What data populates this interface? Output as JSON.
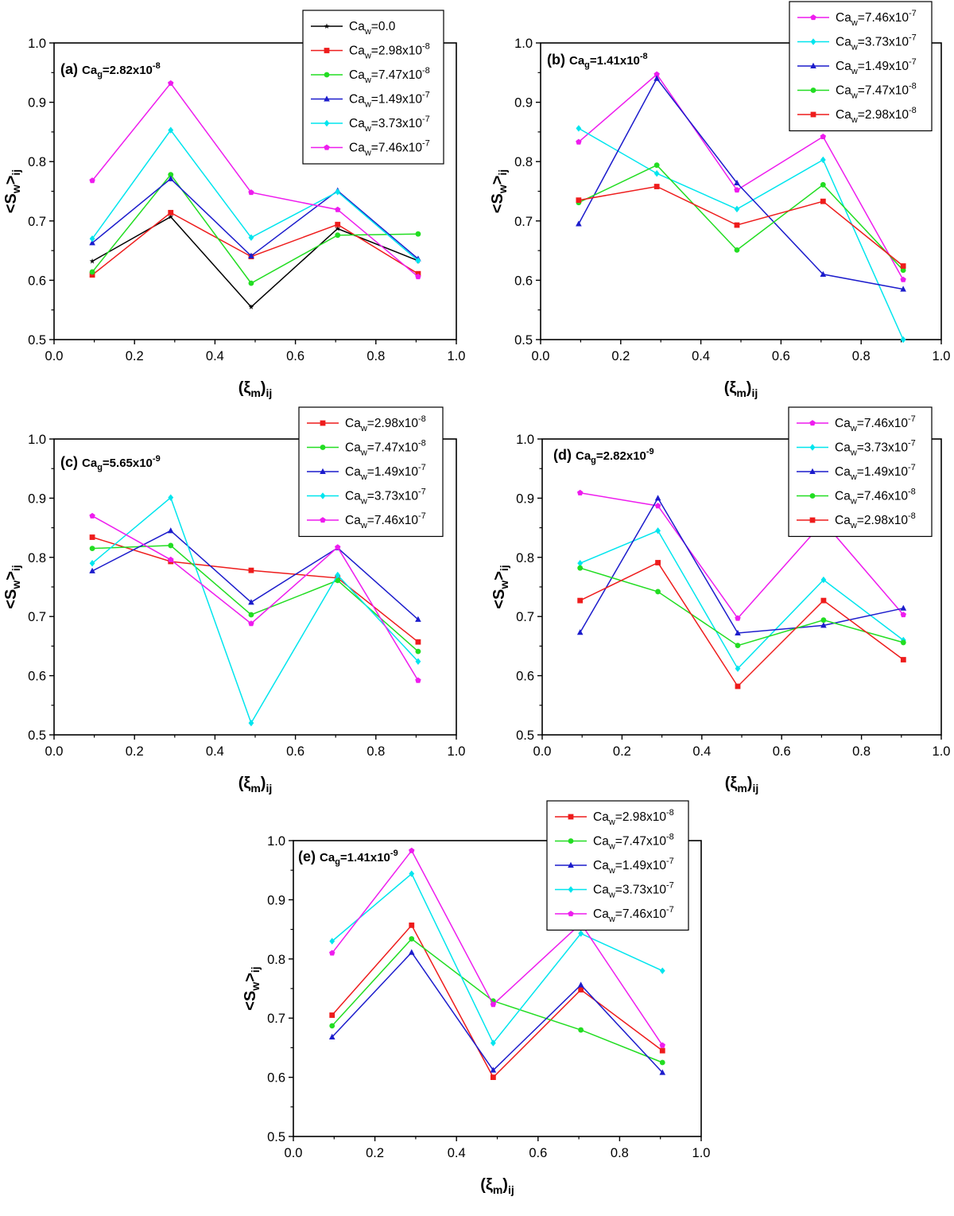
{
  "figure": {
    "x_label": "(ξm)ij",
    "y_label": "<Sw>ij",
    "colors": {
      "Ca_w=0.0": "#000000",
      "Ca_w=2.98x10^-8": "#ee1c1c",
      "Ca_w=7.47x10^-8": "#22dd22",
      "Ca_w=7.46x10^-8": "#22dd22",
      "Ca_w=1.49x10^-7": "#1c1ccc",
      "Ca_w=3.73x10^-7": "#00e5ee",
      "Ca_w=7.46x10^-7": "#ee1cee"
    },
    "markers": {
      "Ca_w=0.0": "star",
      "Ca_w=2.98x10^-8": "square",
      "Ca_w=7.47x10^-8": "circle",
      "Ca_w=7.46x10^-8": "circle",
      "Ca_w=1.49x10^-7": "triangle",
      "Ca_w=3.73x10^-7": "diamond",
      "Ca_w=7.46x10^-7": "pentagon"
    }
  },
  "chart_data": [
    {
      "type": "line",
      "panel_label": "(a)",
      "title_main": "Ca",
      "title_sub": "g",
      "title_eq": "=2.82x10",
      "title_exp": "-8",
      "xlabel": "(ξm)ij",
      "ylabel": "<Sw>ij",
      "xlim": [
        0.0,
        1.0
      ],
      "ylim": [
        0.5,
        1.0
      ],
      "xticks": [
        "0.0",
        "0.2",
        "0.4",
        "0.6",
        "0.8",
        "1.0"
      ],
      "yticks": [
        "0.5",
        "0.6",
        "0.7",
        "0.8",
        "0.9",
        "1.0"
      ],
      "x": [
        0.095,
        0.29,
        0.49,
        0.705,
        0.905
      ],
      "legend_location": "top-right",
      "series": [
        {
          "key": "Ca_w=0.0",
          "name": "Ca",
          "sub": "w",
          "eq": "=0.0",
          "exp": "",
          "values": [
            0.632,
            0.707,
            0.555,
            0.687,
            0.633
          ]
        },
        {
          "key": "Ca_w=2.98x10^-8",
          "name": "Ca",
          "sub": "w",
          "eq": "=2.98x10",
          "exp": "-8",
          "values": [
            0.609,
            0.714,
            0.64,
            0.694,
            0.611
          ]
        },
        {
          "key": "Ca_w=7.47x10^-8",
          "name": "Ca",
          "sub": "w",
          "eq": "=7.47x10",
          "exp": "-8",
          "values": [
            0.614,
            0.778,
            0.595,
            0.676,
            0.678
          ]
        },
        {
          "key": "Ca_w=1.49x10^-7",
          "name": "Ca",
          "sub": "w",
          "eq": "=1.49x10",
          "exp": "-7",
          "values": [
            0.663,
            0.771,
            0.641,
            0.751,
            0.636
          ]
        },
        {
          "key": "Ca_w=3.73x10^-7",
          "name": "Ca",
          "sub": "w",
          "eq": "=3.73x10",
          "exp": "-7",
          "values": [
            0.67,
            0.853,
            0.672,
            0.749,
            0.633
          ]
        },
        {
          "key": "Ca_w=7.46x10^-7",
          "name": "Ca",
          "sub": "w",
          "eq": "=7.46x10",
          "exp": "-7",
          "values": [
            0.768,
            0.932,
            0.748,
            0.719,
            0.606
          ]
        }
      ]
    },
    {
      "type": "line",
      "panel_label": "(b)",
      "title_main": "Ca",
      "title_sub": "g",
      "title_eq": "=1.41x10",
      "title_exp": "-8",
      "xlabel": "(ξm)ij",
      "ylabel": "<Sw>ij",
      "xlim": [
        0.0,
        1.0
      ],
      "ylim": [
        0.5,
        1.0
      ],
      "xticks": [
        "0.0",
        "0.2",
        "0.4",
        "0.6",
        "0.8",
        "1.0"
      ],
      "yticks": [
        "0.5",
        "0.6",
        "0.7",
        "0.8",
        "0.9",
        "1.0"
      ],
      "x": [
        0.095,
        0.29,
        0.49,
        0.705,
        0.905
      ],
      "legend_location": "top-right",
      "series": [
        {
          "key": "Ca_w=7.46x10^-7",
          "name": "Ca",
          "sub": "w",
          "eq": "=7.46x10",
          "exp": "-7",
          "values": [
            0.833,
            0.947,
            0.752,
            0.842,
            0.601
          ]
        },
        {
          "key": "Ca_w=3.73x10^-7",
          "name": "Ca",
          "sub": "w",
          "eq": "=3.73x10",
          "exp": "-7",
          "values": [
            0.856,
            0.78,
            0.72,
            0.803,
            0.5
          ]
        },
        {
          "key": "Ca_w=1.49x10^-7",
          "name": "Ca",
          "sub": "w",
          "eq": "=1.49x10",
          "exp": "-7",
          "values": [
            0.695,
            0.94,
            0.764,
            0.61,
            0.585
          ]
        },
        {
          "key": "Ca_w=7.47x10^-8",
          "name": "Ca",
          "sub": "w",
          "eq": "=7.47x10",
          "exp": "-8",
          "values": [
            0.731,
            0.794,
            0.651,
            0.761,
            0.617
          ]
        },
        {
          "key": "Ca_w=2.98x10^-8",
          "name": "Ca",
          "sub": "w",
          "eq": "=2.98x10",
          "exp": "-8",
          "values": [
            0.735,
            0.758,
            0.693,
            0.733,
            0.624
          ]
        }
      ]
    },
    {
      "type": "line",
      "panel_label": "(c)",
      "title_main": "Ca",
      "title_sub": "g",
      "title_eq": "=5.65x10",
      "title_exp": "-9",
      "xlabel": "(ξm)ij",
      "ylabel": "<Sw>ij",
      "xlim": [
        0.0,
        1.0
      ],
      "ylim": [
        0.5,
        1.0
      ],
      "xticks": [
        "0.0",
        "0.2",
        "0.4",
        "0.6",
        "0.8",
        "1.0"
      ],
      "yticks": [
        "0.5",
        "0.6",
        "0.7",
        "0.8",
        "0.9",
        "1.0"
      ],
      "x": [
        0.095,
        0.29,
        0.49,
        0.705,
        0.905
      ],
      "legend_location": "top-right",
      "series": [
        {
          "key": "Ca_w=2.98x10^-8",
          "name": "Ca",
          "sub": "w",
          "eq": "=2.98x10",
          "exp": "-8",
          "values": [
            0.834,
            0.793,
            0.778,
            0.765,
            0.657
          ]
        },
        {
          "key": "Ca_w=7.47x10^-8",
          "name": "Ca",
          "sub": "w",
          "eq": "=7.47x10",
          "exp": "-8",
          "values": [
            0.815,
            0.82,
            0.703,
            0.761,
            0.641
          ]
        },
        {
          "key": "Ca_w=1.49x10^-7",
          "name": "Ca",
          "sub": "w",
          "eq": "=1.49x10",
          "exp": "-7",
          "values": [
            0.777,
            0.845,
            0.724,
            0.816,
            0.695
          ]
        },
        {
          "key": "Ca_w=3.73x10^-7",
          "name": "Ca",
          "sub": "w",
          "eq": "=3.73x10",
          "exp": "-7",
          "values": [
            0.79,
            0.901,
            0.52,
            0.77,
            0.624
          ]
        },
        {
          "key": "Ca_w=7.46x10^-7",
          "name": "Ca",
          "sub": "w",
          "eq": "=7.46x10",
          "exp": "-7",
          "values": [
            0.87,
            0.796,
            0.688,
            0.817,
            0.592
          ]
        }
      ]
    },
    {
      "type": "line",
      "panel_label": "(d)",
      "title_main": "Ca",
      "title_sub": "g",
      "title_eq": "=2.82x10",
      "title_exp": "-9",
      "xlabel": "(ξm)ij",
      "ylabel": "<Sw>ij",
      "xlim": [
        0.0,
        1.0
      ],
      "ylim": [
        0.5,
        1.0
      ],
      "xticks": [
        "0.0",
        "0.2",
        "0.4",
        "0.6",
        "0.8",
        "1.0"
      ],
      "yticks": [
        "0.5",
        "0.6",
        "0.7",
        "0.8",
        "0.9",
        "1.0"
      ],
      "x": [
        0.095,
        0.29,
        0.49,
        0.705,
        0.905
      ],
      "legend_location": "top-right",
      "series": [
        {
          "key": "Ca_w=7.46x10^-7",
          "name": "Ca",
          "sub": "w",
          "eq": "=7.46x10",
          "exp": "-7",
          "values": [
            0.909,
            0.887,
            0.697,
            0.86,
            0.703
          ]
        },
        {
          "key": "Ca_w=3.73x10^-7",
          "name": "Ca",
          "sub": "w",
          "eq": "=3.73x10",
          "exp": "-7",
          "values": [
            0.79,
            0.845,
            0.612,
            0.762,
            0.66
          ]
        },
        {
          "key": "Ca_w=1.49x10^-7",
          "name": "Ca",
          "sub": "w",
          "eq": "=1.49x10",
          "exp": "-7",
          "values": [
            0.673,
            0.9,
            0.672,
            0.685,
            0.714
          ]
        },
        {
          "key": "Ca_w=7.46x10^-8",
          "name": "Ca",
          "sub": "w",
          "eq": "=7.46x10",
          "exp": "-8",
          "values": [
            0.782,
            0.742,
            0.651,
            0.694,
            0.656
          ]
        },
        {
          "key": "Ca_w=2.98x10^-8",
          "name": "Ca",
          "sub": "w",
          "eq": "=2.98x10",
          "exp": "-8",
          "values": [
            0.727,
            0.791,
            0.582,
            0.727,
            0.627
          ]
        }
      ]
    },
    {
      "type": "line",
      "panel_label": "(e)",
      "title_main": "Ca",
      "title_sub": "g",
      "title_eq": "=1.41x10",
      "title_exp": "-9",
      "xlabel": "(ξm)ij",
      "ylabel": "<Sw>ij",
      "xlim": [
        0.0,
        1.0
      ],
      "ylim": [
        0.5,
        1.0
      ],
      "xticks": [
        "0.0",
        "0.2",
        "0.4",
        "0.6",
        "0.8",
        "1.0"
      ],
      "yticks": [
        "0.5",
        "0.6",
        "0.7",
        "0.8",
        "0.9",
        "1.0"
      ],
      "x": [
        0.095,
        0.29,
        0.49,
        0.705,
        0.905
      ],
      "legend_location": "top-right",
      "series": [
        {
          "key": "Ca_w=2.98x10^-8",
          "name": "Ca",
          "sub": "w",
          "eq": "=2.98x10",
          "exp": "-8",
          "values": [
            0.705,
            0.857,
            0.6,
            0.748,
            0.645
          ]
        },
        {
          "key": "Ca_w=7.47x10^-8",
          "name": "Ca",
          "sub": "w",
          "eq": "=7.47x10",
          "exp": "-8",
          "values": [
            0.687,
            0.834,
            0.729,
            0.68,
            0.625
          ]
        },
        {
          "key": "Ca_w=1.49x10^-7",
          "name": "Ca",
          "sub": "w",
          "eq": "=1.49x10",
          "exp": "-7",
          "values": [
            0.668,
            0.811,
            0.612,
            0.756,
            0.608
          ]
        },
        {
          "key": "Ca_w=3.73x10^-7",
          "name": "Ca",
          "sub": "w",
          "eq": "=3.73x10",
          "exp": "-7",
          "values": [
            0.83,
            0.944,
            0.658,
            0.843,
            0.78
          ]
        },
        {
          "key": "Ca_w=7.46x10^-7",
          "name": "Ca",
          "sub": "w",
          "eq": "=7.46x10",
          "exp": "-7",
          "values": [
            0.81,
            0.983,
            0.723,
            0.86,
            0.654
          ]
        }
      ]
    }
  ]
}
